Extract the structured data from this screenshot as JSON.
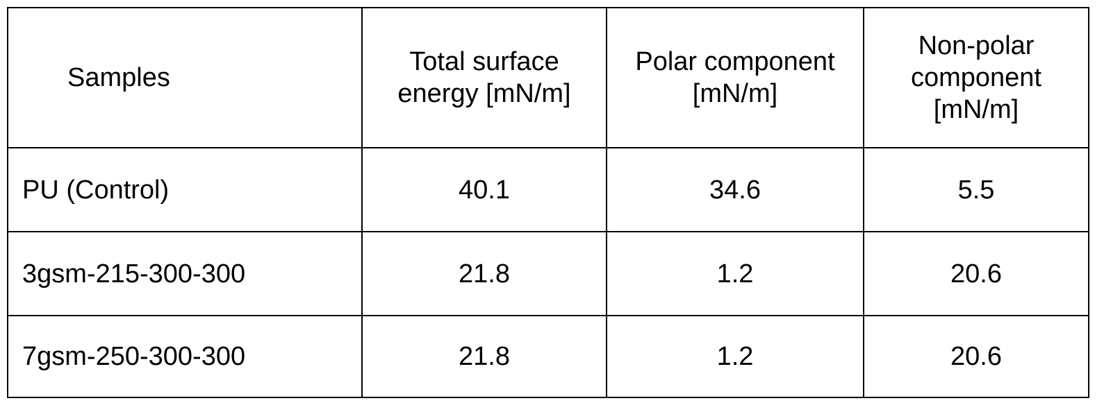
{
  "table": {
    "headers": {
      "samples": "Samples",
      "total": [
        "Total surface",
        "energy [mN/m]"
      ],
      "polar": [
        "Polar component",
        "[mN/m]"
      ],
      "nonpolar": [
        "Non-polar",
        "component",
        "[mN/m]"
      ]
    },
    "rows": [
      {
        "sample": "PU (Control)",
        "total": "40.1",
        "polar": "34.6",
        "nonpolar": "5.5"
      },
      {
        "sample": "3gsm-215-300-300",
        "total": "21.8",
        "polar": "1.2",
        "nonpolar": "20.6"
      },
      {
        "sample": "7gsm-250-300-300",
        "total": "21.8",
        "polar": "1.2",
        "nonpolar": "20.6"
      }
    ]
  }
}
